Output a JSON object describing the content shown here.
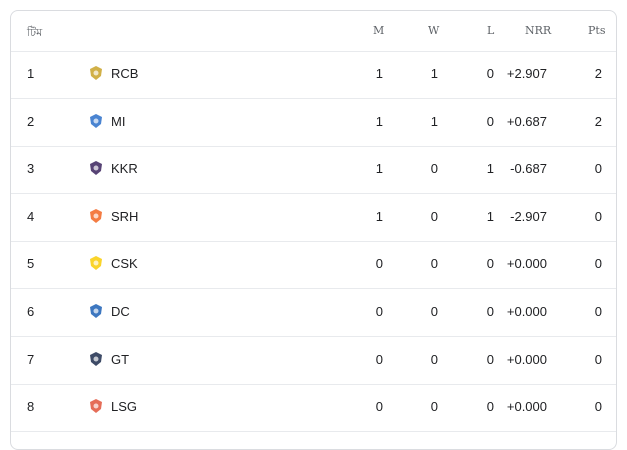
{
  "header": {
    "team": "টিম",
    "m": "M",
    "w": "W",
    "l": "L",
    "nrr": "NRR",
    "pts": "Pts"
  },
  "rows": [
    {
      "pos": "1",
      "team": "RCB",
      "logo": "rcb-logo-icon",
      "m": "1",
      "w": "1",
      "l": "0",
      "nrr": "+2.907",
      "pts": "2",
      "color": "#c9a227"
    },
    {
      "pos": "2",
      "team": "MI",
      "logo": "mi-logo-icon",
      "m": "1",
      "w": "1",
      "l": "0",
      "nrr": "+0.687",
      "pts": "2",
      "color": "#2a6fc9"
    },
    {
      "pos": "3",
      "team": "KKR",
      "logo": "kkr-logo-icon",
      "m": "1",
      "w": "0",
      "l": "1",
      "nrr": "-0.687",
      "pts": "0",
      "color": "#3a225d"
    },
    {
      "pos": "4",
      "team": "SRH",
      "logo": "srh-logo-icon",
      "m": "1",
      "w": "0",
      "l": "1",
      "nrr": "-2.907",
      "pts": "0",
      "color": "#f26522"
    },
    {
      "pos": "5",
      "team": "CSK",
      "logo": "csk-logo-icon",
      "m": "0",
      "w": "0",
      "l": "0",
      "nrr": "+0.000",
      "pts": "0",
      "color": "#f9cd05"
    },
    {
      "pos": "6",
      "team": "DC",
      "logo": "dc-logo-icon",
      "m": "0",
      "w": "0",
      "l": "0",
      "nrr": "+0.000",
      "pts": "0",
      "color": "#1b5fb5"
    },
    {
      "pos": "7",
      "team": "GT",
      "logo": "gt-logo-icon",
      "m": "0",
      "w": "0",
      "l": "0",
      "nrr": "+0.000",
      "pts": "0",
      "color": "#1c2c4c"
    },
    {
      "pos": "8",
      "team": "LSG",
      "logo": "lsg-logo-icon",
      "m": "0",
      "w": "0",
      "l": "0",
      "nrr": "+0.000",
      "pts": "0",
      "color": "#e0543b"
    }
  ]
}
